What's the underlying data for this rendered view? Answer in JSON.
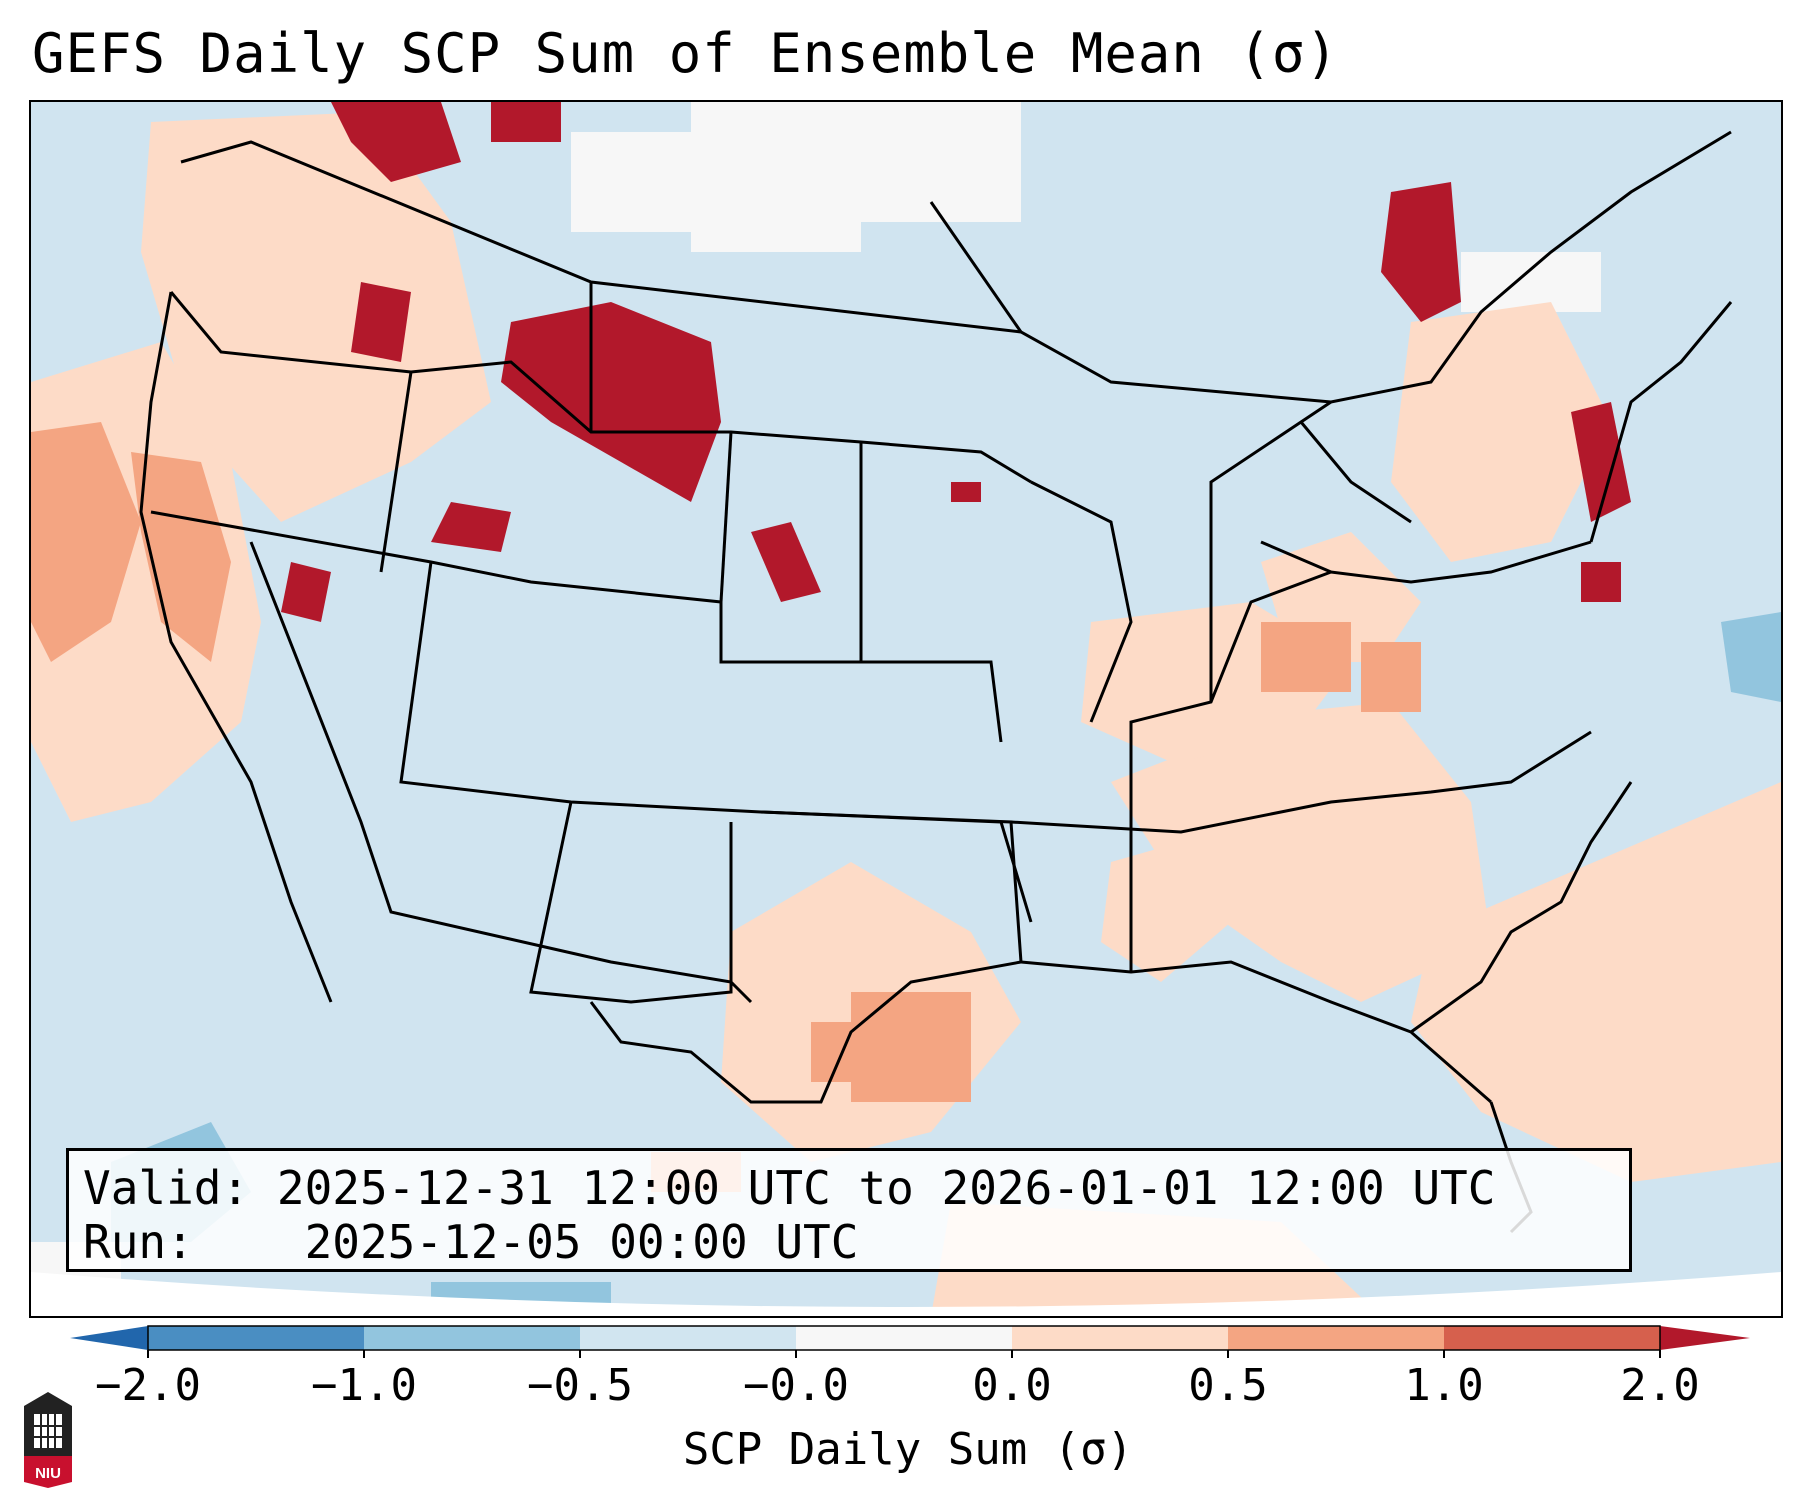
{
  "title": "GEFS Daily SCP Sum of Ensemble Mean (σ)",
  "info": {
    "valid_label": "Valid:",
    "valid_value": "2025-12-31 12:00 UTC to 2026-01-01 12:00 UTC",
    "run_label": "Run:",
    "run_value": "2025-12-05 00:00 UTC"
  },
  "colorbar": {
    "label": "SCP Daily Sum (σ)",
    "ticks": [
      "−2.0",
      "−1.0",
      "−0.5",
      "−0.0",
      "0.0",
      "0.5",
      "1.0",
      "2.0"
    ],
    "colors": [
      "#4a8ec2",
      "#92c5de",
      "#d1e5f0",
      "#f7f7f7",
      "#fddbc7",
      "#f4a582",
      "#d6604d"
    ],
    "extend_low_color": "#2166ac",
    "extend_high_color": "#b2182b"
  },
  "map": {
    "region": "Continental United States",
    "background_color": "#d1e5f0"
  },
  "logo": {
    "text": "NIU"
  }
}
